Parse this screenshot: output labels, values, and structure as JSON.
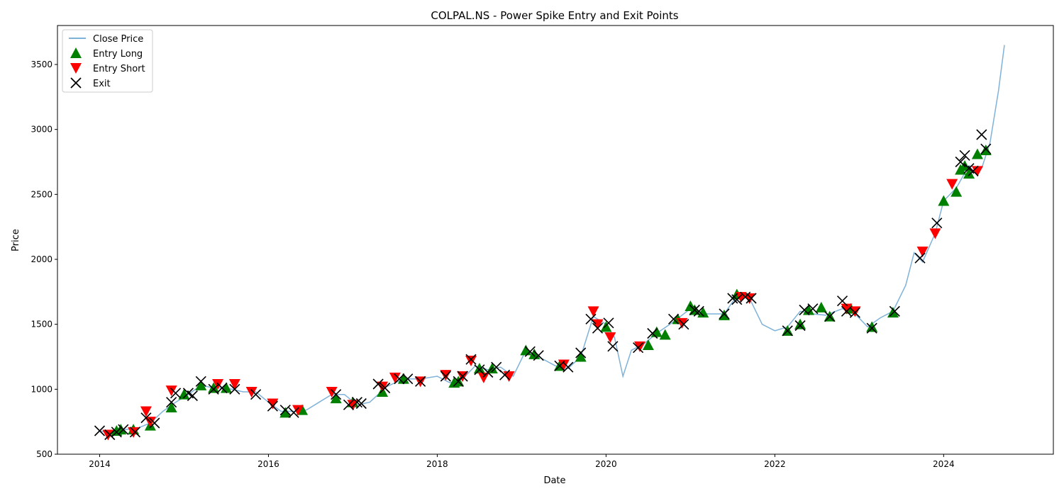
{
  "chart_data": {
    "type": "line",
    "title": "COLPAL.NS - Power Spike Entry and Exit Points",
    "xlabel": "Date",
    "ylabel": "Price",
    "x_range": [
      2013.5,
      2025.3
    ],
    "ylim": [
      500,
      3800
    ],
    "x_ticks": [
      {
        "value": 2014,
        "label": "2014"
      },
      {
        "value": 2016,
        "label": "2016"
      },
      {
        "value": 2018,
        "label": "2018"
      },
      {
        "value": 2020,
        "label": "2020"
      },
      {
        "value": 2022,
        "label": "2022"
      },
      {
        "value": 2024,
        "label": "2024"
      }
    ],
    "y_ticks": [
      {
        "value": 500,
        "label": "500"
      },
      {
        "value": 1000,
        "label": "1000"
      },
      {
        "value": 1500,
        "label": "1500"
      },
      {
        "value": 2000,
        "label": "2000"
      },
      {
        "value": 2500,
        "label": "2500"
      },
      {
        "value": 3000,
        "label": "3000"
      },
      {
        "value": 3500,
        "label": "3500"
      }
    ],
    "grid": false,
    "legend_position": "top-left",
    "colors": {
      "close": "#7fb2d8",
      "long": "#008000",
      "short": "#ff0000",
      "exit": "#000000"
    },
    "series": [
      {
        "name": "Close Price",
        "type": "line",
        "x": [
          2014.0,
          2014.15,
          2014.3,
          2014.45,
          2014.6,
          2014.75,
          2014.9,
          2015.05,
          2015.2,
          2015.35,
          2015.5,
          2015.7,
          2015.85,
          2016.0,
          2016.15,
          2016.3,
          2016.45,
          2016.6,
          2016.75,
          2016.9,
          2017.05,
          2017.2,
          2017.4,
          2017.6,
          2017.8,
          2018.0,
          2018.15,
          2018.3,
          2018.45,
          2018.6,
          2018.75,
          2018.9,
          2019.05,
          2019.2,
          2019.4,
          2019.55,
          2019.7,
          2019.85,
          2020.0,
          2020.1,
          2020.2,
          2020.3,
          2020.45,
          2020.6,
          2020.8,
          2021.0,
          2021.2,
          2021.4,
          2021.55,
          2021.7,
          2021.85,
          2022.0,
          2022.15,
          2022.3,
          2022.45,
          2022.6,
          2022.8,
          2022.95,
          2023.1,
          2023.25,
          2023.4,
          2023.55,
          2023.65,
          2023.75,
          2023.9,
          2024.0,
          2024.15,
          2024.3,
          2024.45,
          2024.55,
          2024.65,
          2024.72
        ],
        "y": [
          680,
          660,
          690,
          700,
          740,
          830,
          900,
          960,
          1030,
          1010,
          1010,
          980,
          980,
          900,
          830,
          830,
          840,
          900,
          960,
          960,
          880,
          900,
          1020,
          1080,
          1080,
          1100,
          1050,
          1080,
          1180,
          1150,
          1170,
          1100,
          1300,
          1250,
          1180,
          1160,
          1250,
          1560,
          1500,
          1400,
          1100,
          1300,
          1350,
          1430,
          1520,
          1620,
          1580,
          1580,
          1720,
          1700,
          1500,
          1450,
          1480,
          1600,
          1580,
          1570,
          1620,
          1580,
          1480,
          1550,
          1600,
          1800,
          2050,
          1980,
          2200,
          2450,
          2550,
          2720,
          2700,
          2900,
          3300,
          3650
        ]
      },
      {
        "name": "Entry Long",
        "type": "marker",
        "x": [
          2014.2,
          2014.25,
          2014.4,
          2014.6,
          2014.85,
          2015.0,
          2015.2,
          2015.35,
          2015.5,
          2016.2,
          2016.4,
          2016.8,
          2017.0,
          2017.35,
          2017.6,
          2018.2,
          2018.25,
          2018.5,
          2018.65,
          2019.05,
          2019.15,
          2019.45,
          2019.7,
          2020.0,
          2020.5,
          2020.6,
          2020.7,
          2020.85,
          2021.0,
          2021.05,
          2021.15,
          2021.4,
          2021.55,
          2022.15,
          2022.3,
          2022.4,
          2022.55,
          2022.65,
          2022.9,
          2023.15,
          2023.4,
          2024.0,
          2024.15,
          2024.2,
          2024.25,
          2024.3,
          2024.4,
          2024.5
        ],
        "y": [
          680,
          690,
          690,
          720,
          860,
          960,
          1030,
          1010,
          1010,
          820,
          840,
          930,
          900,
          980,
          1080,
          1050,
          1060,
          1160,
          1160,
          1300,
          1270,
          1180,
          1250,
          1480,
          1340,
          1440,
          1420,
          1540,
          1640,
          1610,
          1590,
          1570,
          1730,
          1450,
          1500,
          1610,
          1630,
          1560,
          1620,
          1480,
          1590,
          2450,
          2520,
          2690,
          2720,
          2660,
          2810,
          2840
        ]
      },
      {
        "name": "Entry Short",
        "type": "marker",
        "x": [
          2014.1,
          2014.4,
          2014.55,
          2014.6,
          2014.85,
          2015.4,
          2015.6,
          2015.8,
          2016.05,
          2016.35,
          2016.75,
          2017.0,
          2017.35,
          2017.5,
          2017.8,
          2018.1,
          2018.3,
          2018.4,
          2018.55,
          2018.85,
          2019.5,
          2019.85,
          2019.9,
          2020.05,
          2020.4,
          2020.9,
          2021.6,
          2021.7,
          2022.85,
          2022.95,
          2023.75,
          2023.9,
          2024.1,
          2024.4
        ],
        "y": [
          650,
          670,
          830,
          750,
          990,
          1040,
          1040,
          980,
          890,
          840,
          980,
          880,
          1020,
          1090,
          1060,
          1110,
          1100,
          1220,
          1090,
          1100,
          1190,
          1600,
          1500,
          1400,
          1330,
          1510,
          1710,
          1700,
          1620,
          1600,
          2060,
          2200,
          2580,
          2680
        ]
      },
      {
        "name": "Exit",
        "type": "marker",
        "x": [
          2014.0,
          2014.12,
          2014.2,
          2014.28,
          2014.42,
          2014.55,
          2014.65,
          2014.85,
          2014.9,
          2015.05,
          2015.1,
          2015.2,
          2015.35,
          2015.45,
          2015.6,
          2015.85,
          2016.05,
          2016.2,
          2016.3,
          2016.8,
          2016.95,
          2017.05,
          2017.1,
          2017.3,
          2017.38,
          2017.55,
          2017.65,
          2017.8,
          2018.1,
          2018.25,
          2018.3,
          2018.4,
          2018.5,
          2018.6,
          2018.7,
          2018.8,
          2019.1,
          2019.2,
          2019.45,
          2019.55,
          2019.7,
          2019.82,
          2019.9,
          2020.03,
          2020.08,
          2020.38,
          2020.55,
          2020.8,
          2020.92,
          2021.05,
          2021.1,
          2021.4,
          2021.5,
          2021.55,
          2021.65,
          2021.72,
          2022.15,
          2022.3,
          2022.35,
          2022.45,
          2022.65,
          2022.8,
          2022.85,
          2022.95,
          2023.15,
          2023.42,
          2023.72,
          2023.92,
          2024.2,
          2024.25,
          2024.3,
          2024.35,
          2024.45,
          2024.5
        ],
        "y": [
          680,
          650,
          670,
          690,
          670,
          780,
          740,
          900,
          970,
          970,
          950,
          1060,
          1000,
          1010,
          1000,
          960,
          870,
          840,
          820,
          960,
          880,
          900,
          890,
          1040,
          1010,
          1080,
          1080,
          1060,
          1100,
          1060,
          1100,
          1230,
          1150,
          1130,
          1170,
          1110,
          1290,
          1260,
          1180,
          1170,
          1280,
          1540,
          1470,
          1510,
          1330,
          1320,
          1430,
          1540,
          1500,
          1610,
          1600,
          1580,
          1700,
          1690,
          1710,
          1700,
          1450,
          1490,
          1610,
          1620,
          1560,
          1680,
          1600,
          1590,
          1470,
          1600,
          2010,
          2280,
          2750,
          2800,
          2700,
          2680,
          2960,
          2850
        ]
      }
    ]
  }
}
